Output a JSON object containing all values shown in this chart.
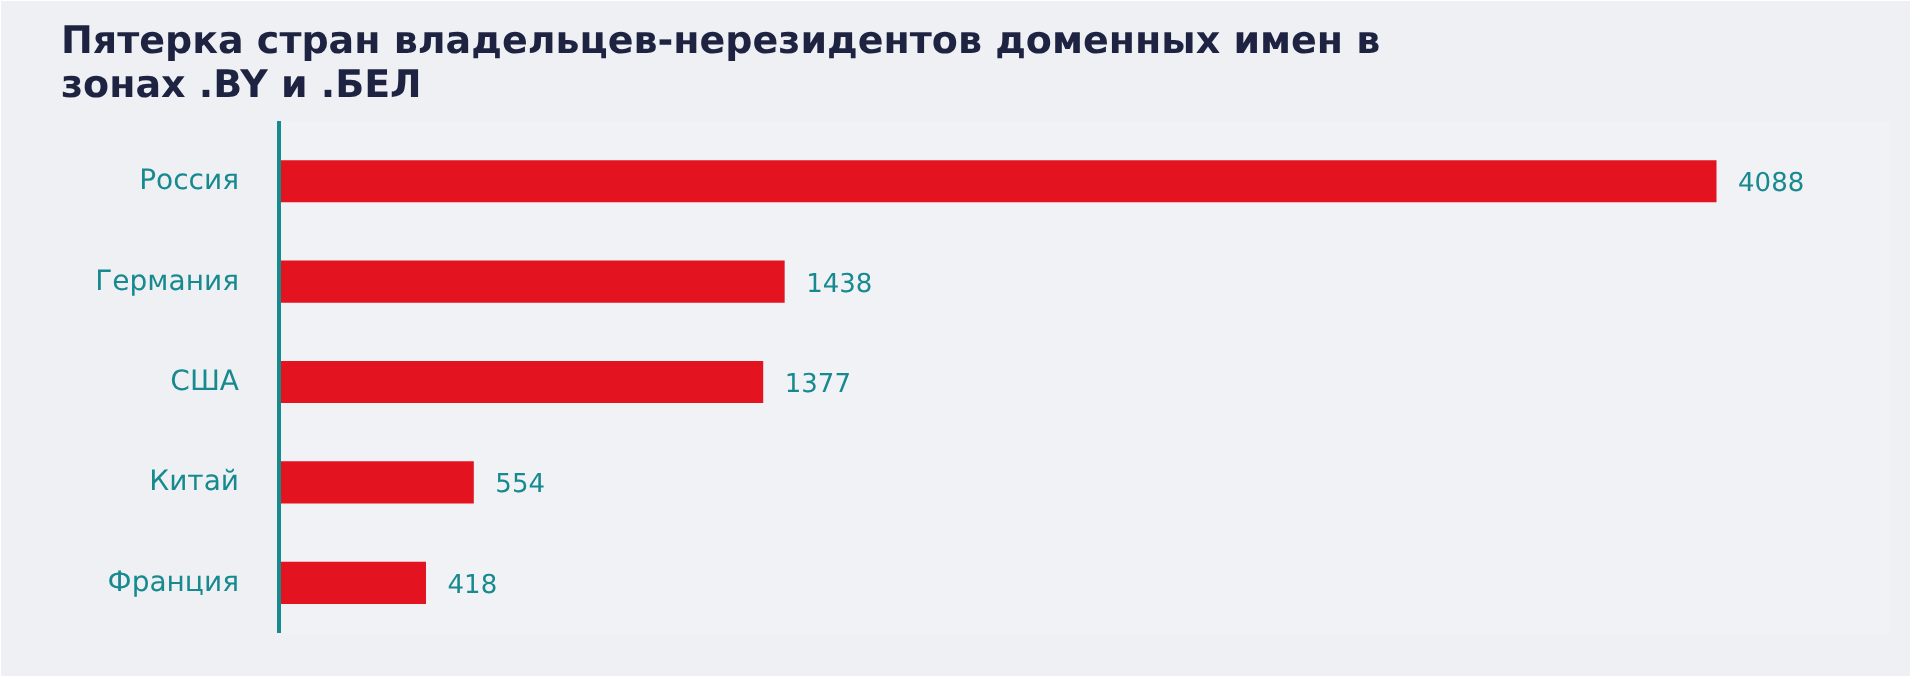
{
  "chart_data": {
    "type": "bar",
    "orientation": "horizontal",
    "title": "Пятерка стран владельцев-нерезидентов доменных имен в зонах .BY и .БЕЛ",
    "categories": [
      "Россия",
      "Германия",
      "США",
      "Китай",
      "Франция"
    ],
    "values": [
      4088,
      1438,
      1377,
      554,
      418
    ],
    "color": "#e3131f",
    "data_labels": true,
    "grid": false
  }
}
